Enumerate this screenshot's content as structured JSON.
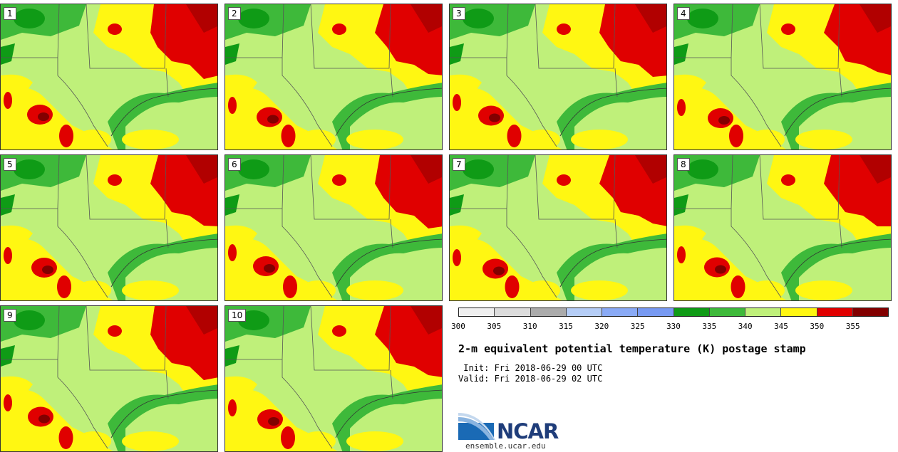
{
  "panels": [
    {
      "label": "1"
    },
    {
      "label": "2"
    },
    {
      "label": "3"
    },
    {
      "label": "4"
    },
    {
      "label": "5"
    },
    {
      "label": "6"
    },
    {
      "label": "7"
    },
    {
      "label": "8"
    },
    {
      "label": "9"
    },
    {
      "label": "10"
    }
  ],
  "colorbar": {
    "colors": [
      "#efefef",
      "#dcdcdc",
      "#ababab",
      "#b5cdf6",
      "#8aaaf5",
      "#789af2",
      "#0f9b16",
      "#3eb93a",
      "#bff07a",
      "#fff712",
      "#e00000",
      "#820000"
    ],
    "ticks": [
      "300",
      "305",
      "310",
      "315",
      "320",
      "325",
      "330",
      "335",
      "340",
      "345",
      "350",
      "355"
    ]
  },
  "title": "2-m equivalent potential temperature (K) postage stamp",
  "init": " Init: Fri 2018-06-29 00 UTC",
  "valid": "Valid: Fri 2018-06-29 02 UTC",
  "logo": {
    "text": "NCAR"
  },
  "site": "ensemble.ucar.edu"
}
